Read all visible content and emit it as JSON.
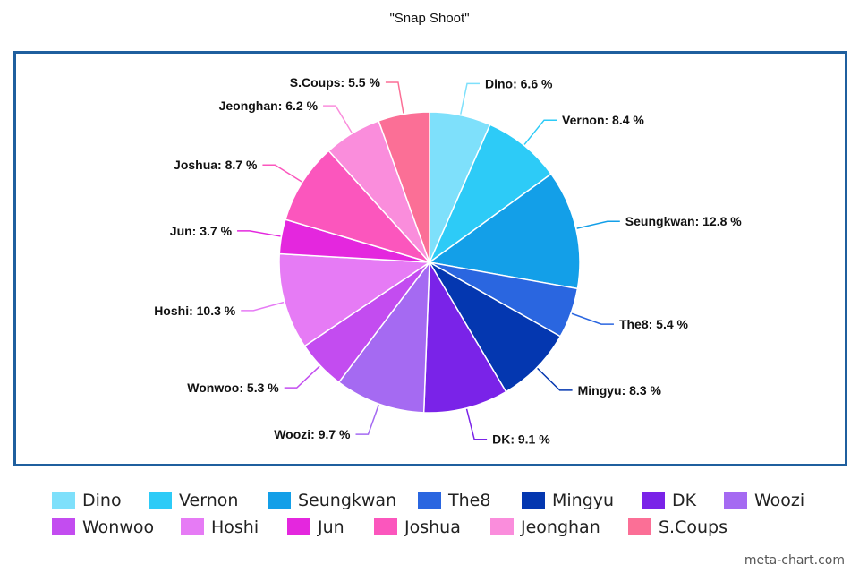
{
  "chart_data": {
    "type": "pie",
    "title": "\"Snap Shoot\"",
    "legend_position": "bottom",
    "slices": [
      {
        "name": "Dino",
        "value": 6.6,
        "label": "Dino: 6.6 %",
        "color": "#7ee0fb"
      },
      {
        "name": "Vernon",
        "value": 8.4,
        "label": "Vernon: 8.4 %",
        "color": "#2dcbf7"
      },
      {
        "name": "Seungkwan",
        "value": 12.8,
        "label": "Seungkwan: 12.8 %",
        "color": "#139fe8"
      },
      {
        "name": "The8",
        "value": 5.4,
        "label": "The8: 5.4 %",
        "color": "#2a66e0"
      },
      {
        "name": "Mingyu",
        "value": 8.3,
        "label": "Mingyu: 8.3 %",
        "color": "#0437b0"
      },
      {
        "name": "DK",
        "value": 9.1,
        "label": "DK: 9.1 %",
        "color": "#7a23e8"
      },
      {
        "name": "Woozi",
        "value": 9.7,
        "label": "Woozi: 9.7 %",
        "color": "#a56af2"
      },
      {
        "name": "Wonwoo",
        "value": 5.3,
        "label": "Wonwoo: 5.3 %",
        "color": "#c34cf0"
      },
      {
        "name": "Hoshi",
        "value": 10.3,
        "label": "Hoshi: 10.3 %",
        "color": "#e67bf5"
      },
      {
        "name": "Jun",
        "value": 3.7,
        "label": "Jun: 3.7 %",
        "color": "#e427de"
      },
      {
        "name": "Joshua",
        "value": 8.7,
        "label": "Joshua: 8.7 %",
        "color": "#fb56bd"
      },
      {
        "name": "Jeonghan",
        "value": 6.2,
        "label": "Jeonghan: 6.2 %",
        "color": "#fa8ddc"
      },
      {
        "name": "S.Coups",
        "value": 5.5,
        "label": "S.Coups: 5.5 %",
        "color": "#fb6f96"
      }
    ]
  },
  "footer": {
    "watermark": "meta-chart.com"
  }
}
